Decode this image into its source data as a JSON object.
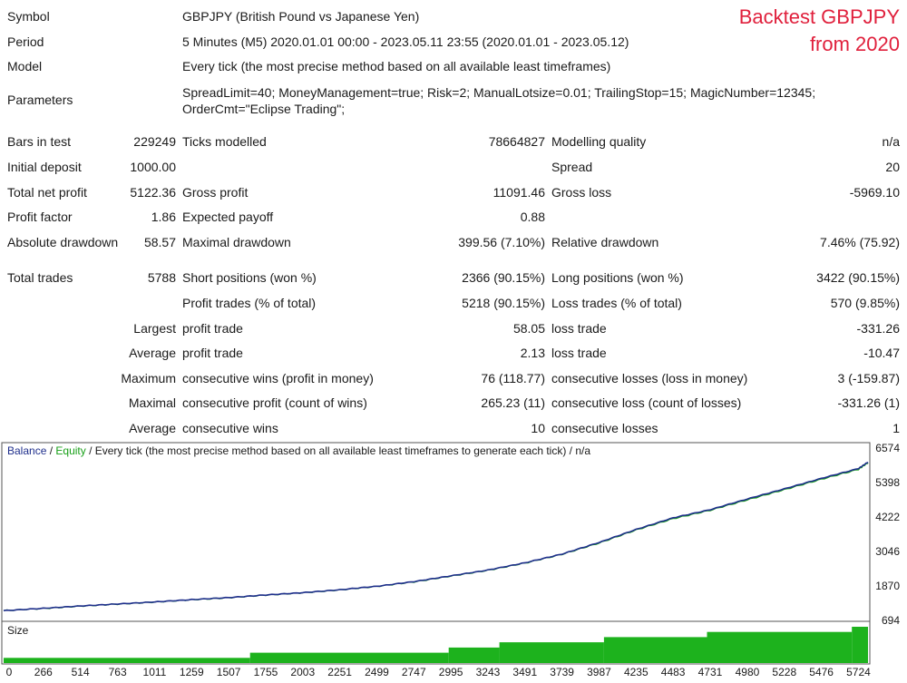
{
  "overlay": {
    "line1": "Backtest GBPJPY",
    "line2": "from 2020"
  },
  "header": {
    "symbol_label": "Symbol",
    "symbol_value": "GBPJPY (British Pound vs Japanese Yen)",
    "period_label": "Period",
    "period_value": "5 Minutes (M5) 2020.01.01 00:00 - 2023.05.11 23:55 (2020.01.01 - 2023.05.12)",
    "model_label": "Model",
    "model_value": "Every tick (the most precise method based on all available least timeframes)",
    "parameters_label": "Parameters",
    "parameters_value": "SpreadLimit=40; MoneyManagement=true; Risk=2; ManualLotsize=0.01; TrailingStop=15; MagicNumber=12345; OrderCmt=\"Eclipse Trading\";"
  },
  "stats": {
    "bars_label": "Bars in test",
    "bars_value": "229249",
    "ticks_label": "Ticks modelled",
    "ticks_value": "78664827",
    "quality_label": "Modelling quality",
    "quality_value": "n/a",
    "deposit_label": "Initial deposit",
    "deposit_value": "1000.00",
    "spread_label": "Spread",
    "spread_value": "20",
    "netprofit_label": "Total net profit",
    "netprofit_value": "5122.36",
    "grossprofit_label": "Gross profit",
    "grossprofit_value": "11091.46",
    "grossloss_label": "Gross loss",
    "grossloss_value": "-5969.10",
    "pf_label": "Profit factor",
    "pf_value": "1.86",
    "payoff_label": "Expected payoff",
    "payoff_value": "0.88",
    "absdd_label": "Absolute drawdown",
    "absdd_value": "58.57",
    "maxdd_label": "Maximal drawdown",
    "maxdd_value": "399.56 (7.10%)",
    "reldd_label": "Relative drawdown",
    "reldd_value": "7.46% (75.92)",
    "trades_label": "Total trades",
    "trades_value": "5788",
    "short_label": "Short positions (won %)",
    "short_value": "2366 (90.15%)",
    "long_label": "Long positions (won %)",
    "long_value": "3422 (90.15%)",
    "ptrades_label": "Profit trades (% of total)",
    "ptrades_value": "5218 (90.15%)",
    "ltrades_label": "Loss trades (% of total)",
    "ltrades_value": "570 (9.85%)",
    "largest_label": "Largest",
    "largest_profit_label": "profit trade",
    "largest_profit_value": "58.05",
    "largest_loss_label": "loss trade",
    "largest_loss_value": "-331.26",
    "average_label": "Average",
    "average_profit_label": "profit trade",
    "average_profit_value": "2.13",
    "average_loss_label": "loss trade",
    "average_loss_value": "-10.47",
    "maximum_label": "Maximum",
    "max_wins_label": "consecutive wins (profit in money)",
    "max_wins_value": "76 (118.77)",
    "max_losses_label": "consecutive losses (loss in money)",
    "max_losses_value": "3 (-159.87)",
    "maximal_label": "Maximal",
    "maximal_profit_label": "consecutive profit (count of wins)",
    "maximal_profit_value": "265.23 (11)",
    "maximal_loss_label": "consecutive loss (count of losses)",
    "maximal_loss_value": "-331.26 (1)",
    "avgcons_label": "Average",
    "avg_wins_label": "consecutive wins",
    "avg_wins_value": "10",
    "avg_losses_label": "consecutive losses",
    "avg_losses_value": "1"
  },
  "chart_legend": {
    "balance": "Balance",
    "sep1": " / ",
    "equity": "Equity",
    "rest": " / Every tick (the most precise method based on all available least timeframes to generate each tick) / n/a"
  },
  "size_label": "Size",
  "colors": {
    "balance": "#1f2f8c",
    "equity": "#18a018",
    "size_bar": "#1db21d",
    "overlay": "#e0203c"
  },
  "chart_data": {
    "type": "line",
    "series": [
      {
        "name": "Balance",
        "x": [
          0,
          266,
          514,
          763,
          1011,
          1259,
          1507,
          1755,
          2003,
          2251,
          2499,
          2747,
          2995,
          3243,
          3491,
          3739,
          3987,
          4235,
          4483,
          4731,
          4980,
          5228,
          5476,
          5724,
          5788
        ],
        "values": [
          1000,
          1080,
          1160,
          1230,
          1300,
          1380,
          1450,
          1540,
          1620,
          1720,
          1840,
          2000,
          2200,
          2400,
          2650,
          2950,
          3350,
          3800,
          4200,
          4480,
          4850,
          5200,
          5560,
          5900,
          6122
        ]
      },
      {
        "name": "Equity",
        "x": [
          0,
          266,
          514,
          763,
          1011,
          1259,
          1507,
          1755,
          2003,
          2251,
          2499,
          2747,
          2995,
          3243,
          3491,
          3739,
          3987,
          4235,
          4483,
          4731,
          4980,
          5228,
          5476,
          5724,
          5788
        ],
        "values": [
          1000,
          1075,
          1155,
          1225,
          1295,
          1375,
          1445,
          1535,
          1615,
          1715,
          1835,
          1990,
          2190,
          2390,
          2640,
          2940,
          3330,
          3780,
          4170,
          4460,
          4820,
          5170,
          5530,
          5870,
          6100
        ]
      }
    ],
    "size_series": {
      "name": "Size",
      "x_breaks": [
        0,
        1650,
        2980,
        3320,
        4020,
        4710,
        5680,
        5788
      ],
      "values": [
        0.01,
        0.02,
        0.03,
        0.04,
        0.05,
        0.06,
        0.07
      ]
    },
    "yticks": [
      "6574",
      "5398",
      "4222",
      "3046",
      "1870",
      "694"
    ],
    "xticks": [
      "0",
      "266",
      "514",
      "763",
      "1011",
      "1259",
      "1507",
      "1755",
      "2003",
      "2251",
      "2499",
      "2747",
      "2995",
      "3243",
      "3491",
      "3739",
      "3987",
      "4235",
      "4483",
      "4731",
      "4980",
      "5228",
      "5476",
      "5724"
    ],
    "ylim": [
      694,
      6574
    ],
    "xlim": [
      0,
      5788
    ]
  }
}
